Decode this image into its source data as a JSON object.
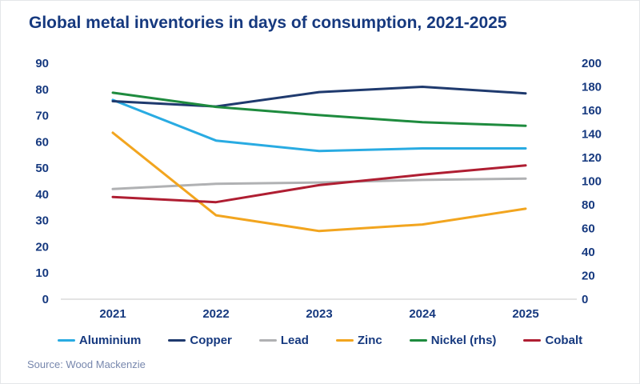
{
  "title": "Global metal inventories in days of consumption, 2021-2025",
  "source": "Source: Wood Mackenzie",
  "colors": {
    "title_text": "#16397F",
    "axis_text": "#16397F",
    "baseline": "#DCDCDC",
    "source_text": "#7787AD",
    "card_border": "#E4E6E9"
  },
  "chart_data": {
    "type": "line",
    "title": "Global metal inventories in days of consumption, 2021-2025",
    "categories": [
      "2021",
      "2022",
      "2023",
      "2024",
      "2025"
    ],
    "left_axis": {
      "min": 0,
      "max": 90,
      "step": 10,
      "ticks": [
        90,
        80,
        70,
        60,
        50,
        40,
        30,
        20,
        10,
        0
      ]
    },
    "right_axis": {
      "min": 0,
      "max": 200,
      "step": 20,
      "ticks": [
        200,
        180,
        160,
        140,
        120,
        100,
        80,
        60,
        40,
        20,
        0
      ]
    },
    "grid": "off",
    "legend_position": "bottom",
    "series": [
      {
        "name": "Aluminium",
        "axis": "left",
        "color": "#29ABE2",
        "values": [
          76,
          60.5,
          56.5,
          57.5,
          57.5
        ]
      },
      {
        "name": "Copper",
        "axis": "left",
        "color": "#1F3A6E",
        "values": [
          75.5,
          73.5,
          79,
          81,
          78.5
        ]
      },
      {
        "name": "Lead",
        "axis": "left",
        "color": "#B0B1B3",
        "values": [
          42,
          44,
          44.5,
          45.5,
          46
        ]
      },
      {
        "name": "Zinc",
        "axis": "left",
        "color": "#F2A51F",
        "values": [
          63.5,
          32,
          26,
          28.5,
          34.5
        ]
      },
      {
        "name": "Nickel (rhs)",
        "axis": "right",
        "color": "#1E8B3E",
        "values": [
          175,
          163,
          156,
          150,
          147
        ]
      },
      {
        "name": "Cobalt",
        "axis": "left",
        "color": "#AF1E32",
        "values": [
          39,
          37,
          43.5,
          47.5,
          51
        ]
      }
    ]
  }
}
